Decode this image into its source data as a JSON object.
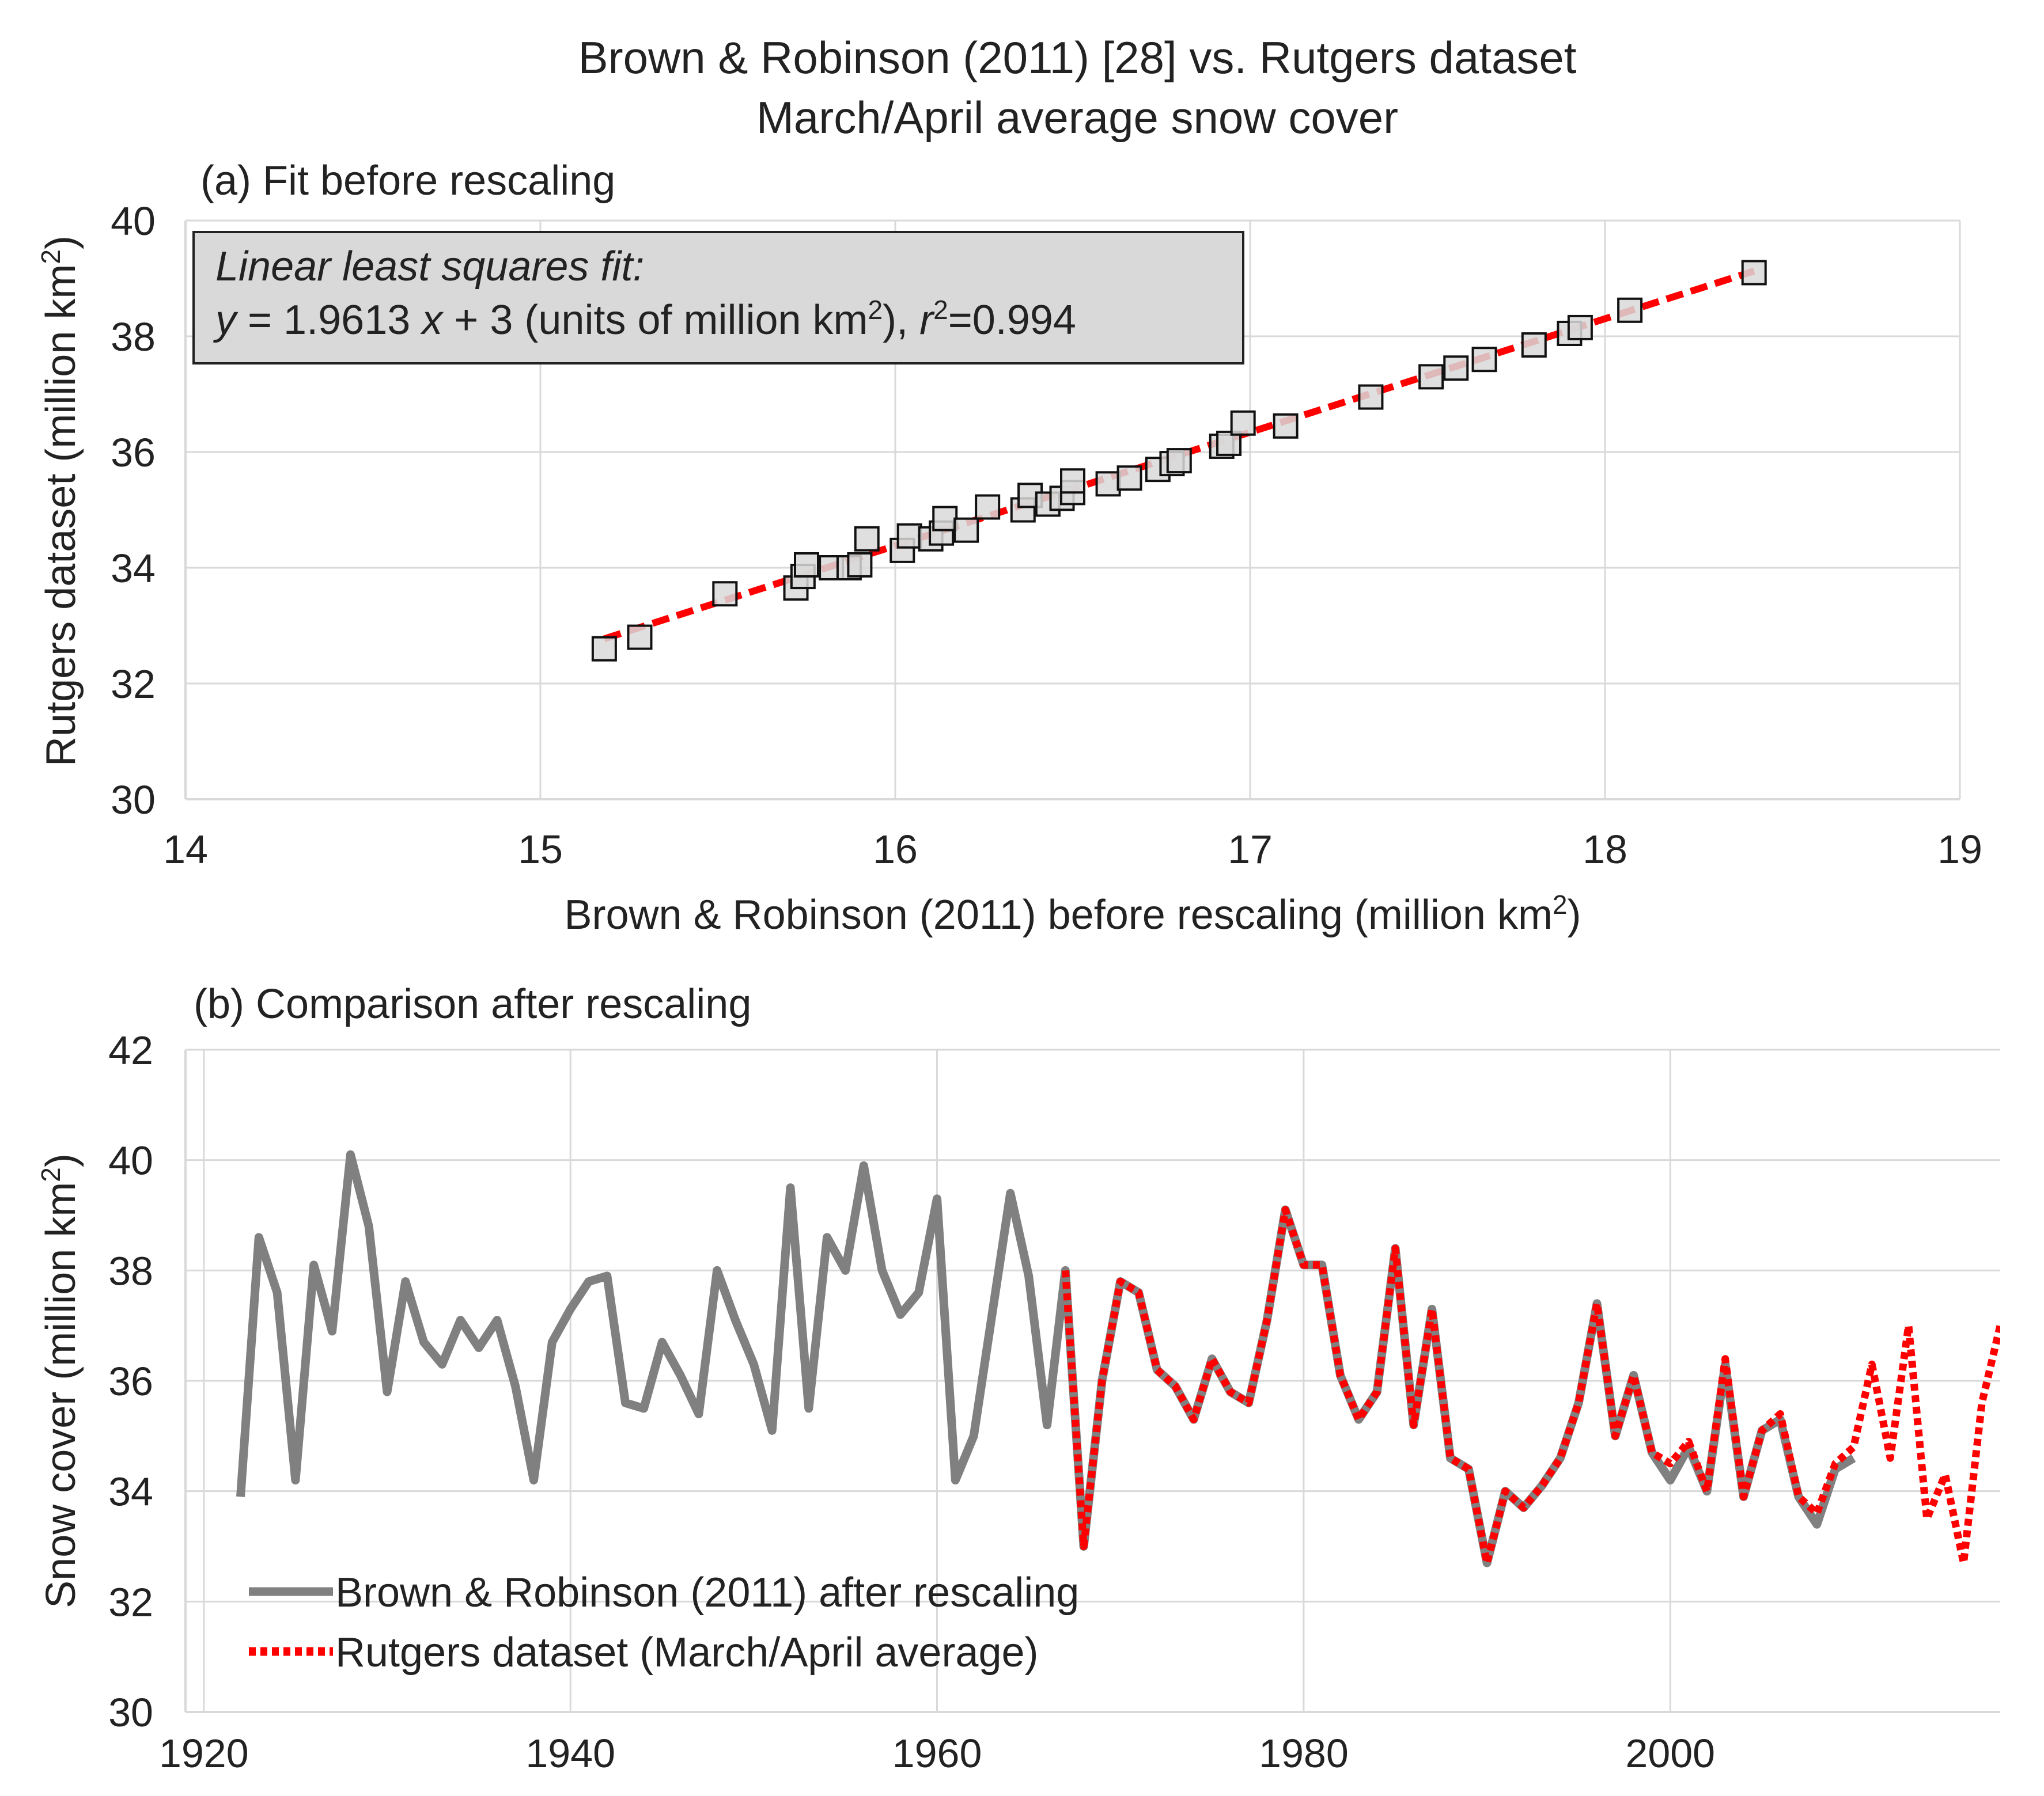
{
  "chart_data": [
    {
      "type": "scatter",
      "title": "Brown & Robinson (2011) [28] vs. Rutgers dataset",
      "subtitle": "March/April average snow cover",
      "panel_label": "(a) Fit before rescaling",
      "xlabel": "Brown & Robinson (2011) before rescaling (million km",
      "xlabel_sup": "2",
      "xlabel_end": ")",
      "ylabel": "Rutgers dataset (million km",
      "ylabel_sup": "2",
      "ylabel_end": ")",
      "xlim": [
        14,
        19
      ],
      "ylim": [
        30,
        40
      ],
      "xticks": [
        14,
        15,
        16,
        17,
        18,
        19
      ],
      "yticks": [
        30,
        32,
        34,
        36,
        38,
        40
      ],
      "grid": true,
      "annotation": {
        "line1": "Linear least squares fit:",
        "line2_y": "y",
        "line2_a": " = 1.9613 ",
        "line2_x": "x",
        "line2_b": " + 3 (units of million km",
        "line2_sup": "2",
        "line2_c": "), ",
        "line2_r": "r",
        "line2_rsup": "2",
        "line2_d": "=0.994"
      },
      "fit": {
        "slope": 1.9613,
        "intercept": 3,
        "x_range": [
          15.18,
          18.42
        ],
        "color": "#ff0000"
      },
      "points": [
        [
          15.18,
          32.6
        ],
        [
          15.28,
          32.8
        ],
        [
          15.52,
          33.55
        ],
        [
          15.72,
          33.65
        ],
        [
          15.74,
          33.85
        ],
        [
          15.75,
          34.05
        ],
        [
          15.82,
          34.0
        ],
        [
          15.87,
          34.0
        ],
        [
          15.9,
          34.05
        ],
        [
          15.92,
          34.5
        ],
        [
          16.02,
          34.3
        ],
        [
          16.04,
          34.55
        ],
        [
          16.1,
          34.5
        ],
        [
          16.13,
          34.6
        ],
        [
          16.14,
          34.85
        ],
        [
          16.2,
          34.65
        ],
        [
          16.26,
          35.05
        ],
        [
          16.36,
          35.0
        ],
        [
          16.38,
          35.25
        ],
        [
          16.43,
          35.1
        ],
        [
          16.47,
          35.2
        ],
        [
          16.5,
          35.3
        ],
        [
          16.5,
          35.5
        ],
        [
          16.6,
          35.45
        ],
        [
          16.66,
          35.55
        ],
        [
          16.74,
          35.7
        ],
        [
          16.78,
          35.8
        ],
        [
          16.8,
          35.85
        ],
        [
          16.92,
          36.1
        ],
        [
          16.94,
          36.15
        ],
        [
          16.98,
          36.5
        ],
        [
          17.1,
          36.45
        ],
        [
          17.34,
          36.95
        ],
        [
          17.51,
          37.3
        ],
        [
          17.58,
          37.45
        ],
        [
          17.66,
          37.6
        ],
        [
          17.8,
          37.85
        ],
        [
          17.9,
          38.05
        ],
        [
          17.93,
          38.15
        ],
        [
          18.07,
          38.45
        ],
        [
          18.42,
          39.1
        ]
      ]
    },
    {
      "type": "line",
      "panel_label": "(b) Comparison after rescaling",
      "ylabel": "Snow cover (million km",
      "ylabel_sup": "2",
      "ylabel_end": ")",
      "xlim": [
        1919,
        2018
      ],
      "ylim": [
        30,
        42
      ],
      "xticks": [
        1920,
        1940,
        1960,
        1980,
        2000
      ],
      "yticks": [
        30,
        32,
        34,
        36,
        38,
        40,
        42
      ],
      "grid": true,
      "legend_position": "bottom-left",
      "series": [
        {
          "name": "Brown & Robinson (2011) after rescaling",
          "color": "#808080",
          "style": "solid",
          "x": [
            1922,
            1923,
            1924,
            1925,
            1926,
            1927,
            1928,
            1929,
            1930,
            1931,
            1932,
            1933,
            1934,
            1935,
            1936,
            1937,
            1938,
            1939,
            1940,
            1941,
            1942,
            1943,
            1944,
            1945,
            1946,
            1947,
            1948,
            1949,
            1950,
            1951,
            1952,
            1953,
            1954,
            1955,
            1956,
            1957,
            1958,
            1959,
            1960,
            1961,
            1962,
            1963,
            1964,
            1965,
            1966,
            1967,
            1968,
            1969,
            1970,
            1971,
            1972,
            1973,
            1974,
            1975,
            1976,
            1977,
            1978,
            1979,
            1980,
            1981,
            1982,
            1983,
            1984,
            1985,
            1986,
            1987,
            1988,
            1989,
            1990,
            1991,
            1992,
            1993,
            1994,
            1995,
            1996,
            1997,
            1998,
            1999,
            2000,
            2001,
            2002,
            2003,
            2004,
            2005,
            2006,
            2007,
            2008,
            2009,
            2010
          ],
          "y": [
            33.9,
            38.6,
            37.6,
            34.2,
            38.1,
            36.9,
            40.1,
            38.8,
            35.8,
            37.8,
            36.7,
            36.3,
            37.1,
            36.6,
            37.1,
            35.9,
            34.2,
            36.7,
            37.3,
            37.8,
            37.9,
            35.6,
            35.5,
            36.7,
            36.1,
            35.4,
            38.0,
            37.1,
            36.3,
            35.1,
            39.5,
            35.5,
            38.6,
            38.0,
            39.9,
            38.0,
            37.2,
            37.6,
            39.3,
            34.2,
            35.0,
            37.2,
            39.4,
            37.9,
            35.2,
            38.0,
            33.0,
            36.0,
            37.8,
            37.6,
            36.2,
            35.9,
            35.3,
            36.4,
            35.8,
            35.6,
            37.1,
            39.1,
            38.1,
            38.1,
            36.1,
            35.3,
            35.8,
            38.4,
            35.2,
            37.3,
            34.6,
            34.4,
            32.7,
            34.0,
            33.7,
            34.1,
            34.6,
            35.6,
            37.4,
            35.0,
            36.1,
            34.7,
            34.2,
            34.8,
            34.0,
            36.3,
            33.9,
            35.1,
            35.3,
            33.9,
            33.4,
            34.4,
            34.6
          ]
        },
        {
          "name": "Rutgers dataset (March/April average)",
          "color": "#ff0000",
          "style": "dotted",
          "x": [
            1967,
            1968,
            1969,
            1970,
            1971,
            1972,
            1973,
            1974,
            1975,
            1976,
            1977,
            1978,
            1979,
            1980,
            1981,
            1982,
            1983,
            1984,
            1985,
            1986,
            1987,
            1988,
            1989,
            1990,
            1991,
            1992,
            1993,
            1994,
            1995,
            1996,
            1997,
            1998,
            1999,
            2000,
            2001,
            2002,
            2003,
            2004,
            2005,
            2006,
            2007,
            2008,
            2009,
            2010,
            2011,
            2012,
            2013,
            2014,
            2015,
            2016,
            2017,
            2018
          ],
          "y": [
            38.0,
            33.0,
            36.0,
            37.8,
            37.6,
            36.2,
            35.9,
            35.3,
            36.4,
            35.8,
            35.6,
            37.1,
            39.1,
            38.1,
            38.1,
            36.1,
            35.3,
            35.8,
            38.4,
            35.2,
            37.3,
            34.6,
            34.4,
            32.7,
            34.0,
            33.7,
            34.1,
            34.6,
            35.6,
            37.4,
            35.0,
            36.1,
            34.7,
            34.5,
            34.9,
            34.0,
            36.4,
            33.9,
            35.1,
            35.4,
            33.9,
            33.6,
            34.5,
            34.8,
            36.3,
            34.6,
            37.0,
            33.5,
            34.3,
            32.7,
            35.6,
            37.0
          ]
        }
      ]
    }
  ]
}
